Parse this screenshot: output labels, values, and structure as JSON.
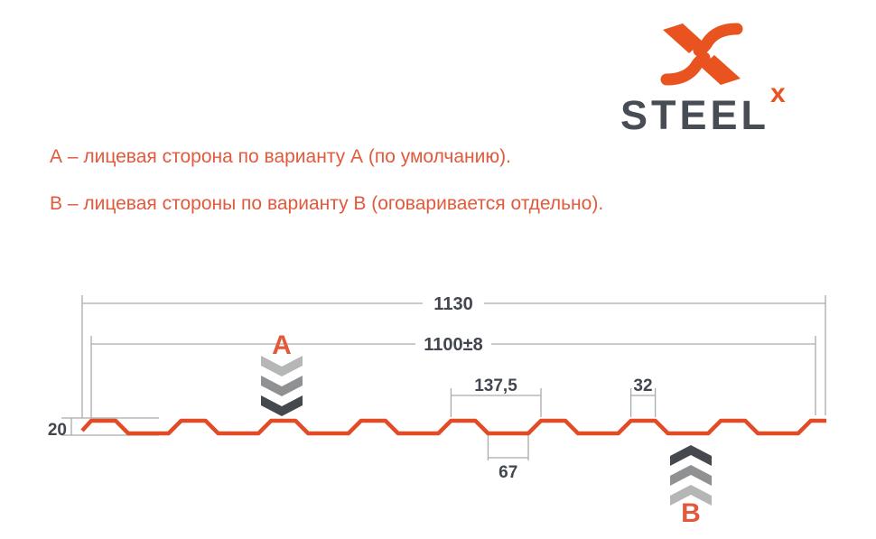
{
  "brand": {
    "wordmark": "STEEL",
    "wordmark_sup": "x"
  },
  "notes": {
    "variant_a": "А – лицевая сторона по варианту А (по умолчанию).",
    "variant_b": "В – лицевая стороны по варианту В (оговаривается отдельно)."
  },
  "diagram": {
    "overall_width_mm": "1130",
    "cover_width_mm": "1100±8",
    "rib_pitch_mm": "137,5",
    "rib_top_width_mm": "32",
    "trough_width_mm": "67",
    "profile_height_mm": "20",
    "side_a_label": "A",
    "side_b_label": "B"
  },
  "colors": {
    "brand_orange": "#E8531F",
    "note_orange": "#E2593C",
    "profile_orange": "#E14B26",
    "dark_text": "#42464F",
    "dim_line_gray": "#ABABAB",
    "chevron_light": "#B5B6B6",
    "chevron_mid": "#8F9193",
    "chevron_dark": "#45484C"
  }
}
